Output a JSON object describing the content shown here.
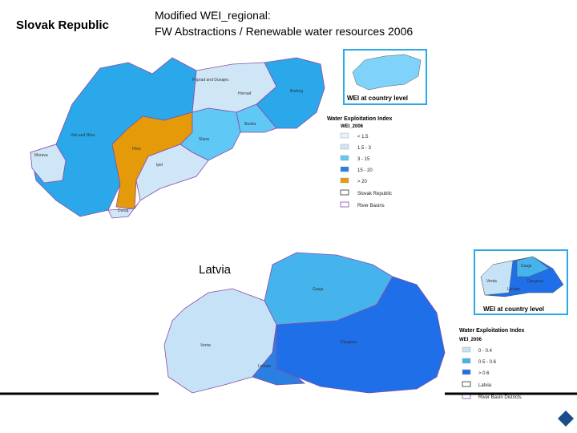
{
  "header": {
    "country": "Slovak Republic",
    "title_line1": "Modified WEI_regional:",
    "title_line2": "FW Abstractions / Renewable water resources 2006"
  },
  "slovakia": {
    "regions": [
      "Poprad and Dunajec",
      "Hornad",
      "Bodrog",
      "Vah and Nitra",
      "Morava",
      "Hron",
      "Bodva",
      "Slana",
      "Ipel",
      "Dunaj"
    ],
    "inset_label": "WEI at country level",
    "legend": {
      "title": "Water Exploitation Index",
      "subtitle": "WEI_2006",
      "items": [
        "< 1.5",
        "1.5 - 3",
        "3 - 15",
        "15 - 20",
        "> 20",
        "Slovak Republic",
        "River Basins"
      ]
    }
  },
  "latvia": {
    "country": "Latvia",
    "regions": [
      "Gauja",
      "Venta",
      "Daugava",
      "Lielupe"
    ],
    "inset_label": "WEI at country level",
    "legend": {
      "title": "Water Exploitation Index",
      "subtitle": "WEI_2006",
      "items": [
        "0 - 0.4",
        "0.5 - 0.6",
        "> 0.6",
        "Latvia",
        "River Basin Districts"
      ]
    }
  }
}
